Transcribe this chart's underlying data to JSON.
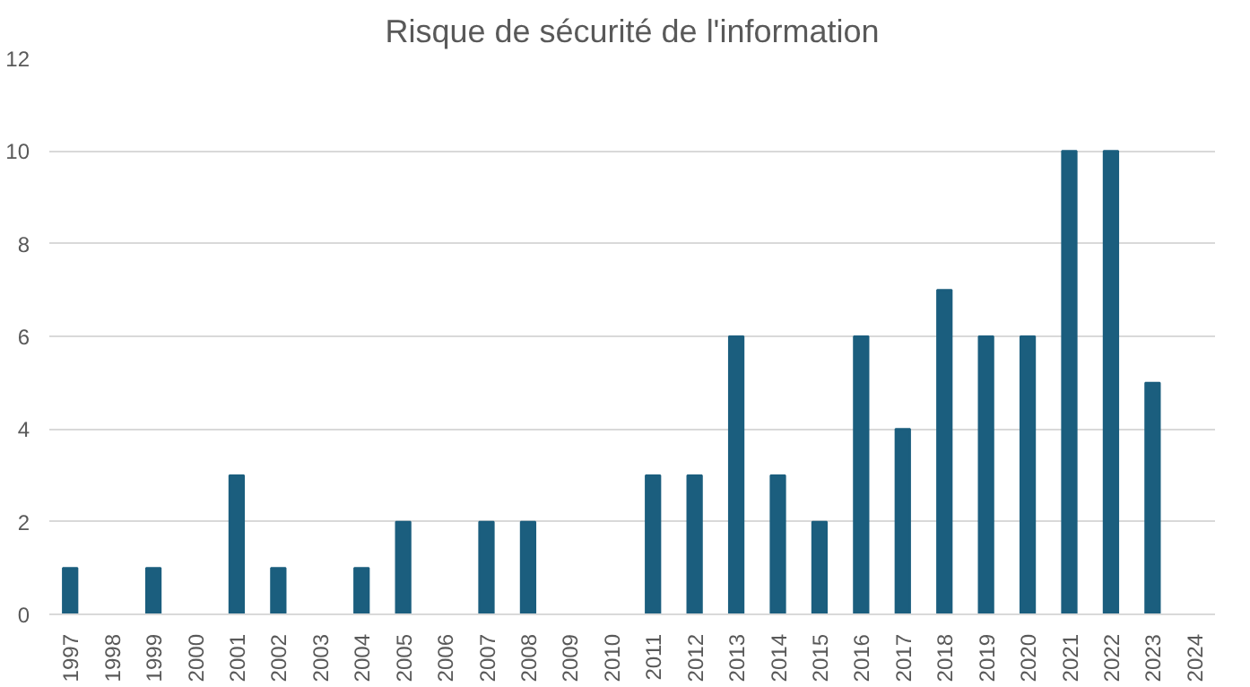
{
  "chart_data": {
    "type": "bar",
    "title": "Risque de sécurité de l'information",
    "categories": [
      "1997",
      "1998",
      "1999",
      "2000",
      "2001",
      "2002",
      "2003",
      "2004",
      "2005",
      "2006",
      "2007",
      "2008",
      "2009",
      "2010",
      "2011",
      "2012",
      "2013",
      "2014",
      "2015",
      "2016",
      "2017",
      "2018",
      "2019",
      "2020",
      "2021",
      "2022",
      "2023",
      "2024"
    ],
    "values": [
      1,
      0,
      1,
      0,
      3,
      1,
      0,
      1,
      2,
      0,
      2,
      2,
      0,
      0,
      3,
      3,
      6,
      3,
      2,
      6,
      4,
      7,
      6,
      6,
      10,
      10,
      5,
      0
    ],
    "color": "#1b5e7e",
    "ylim": [
      0,
      12
    ],
    "yticks": [
      0,
      2,
      4,
      6,
      8,
      10,
      12
    ],
    "grid": "y"
  }
}
